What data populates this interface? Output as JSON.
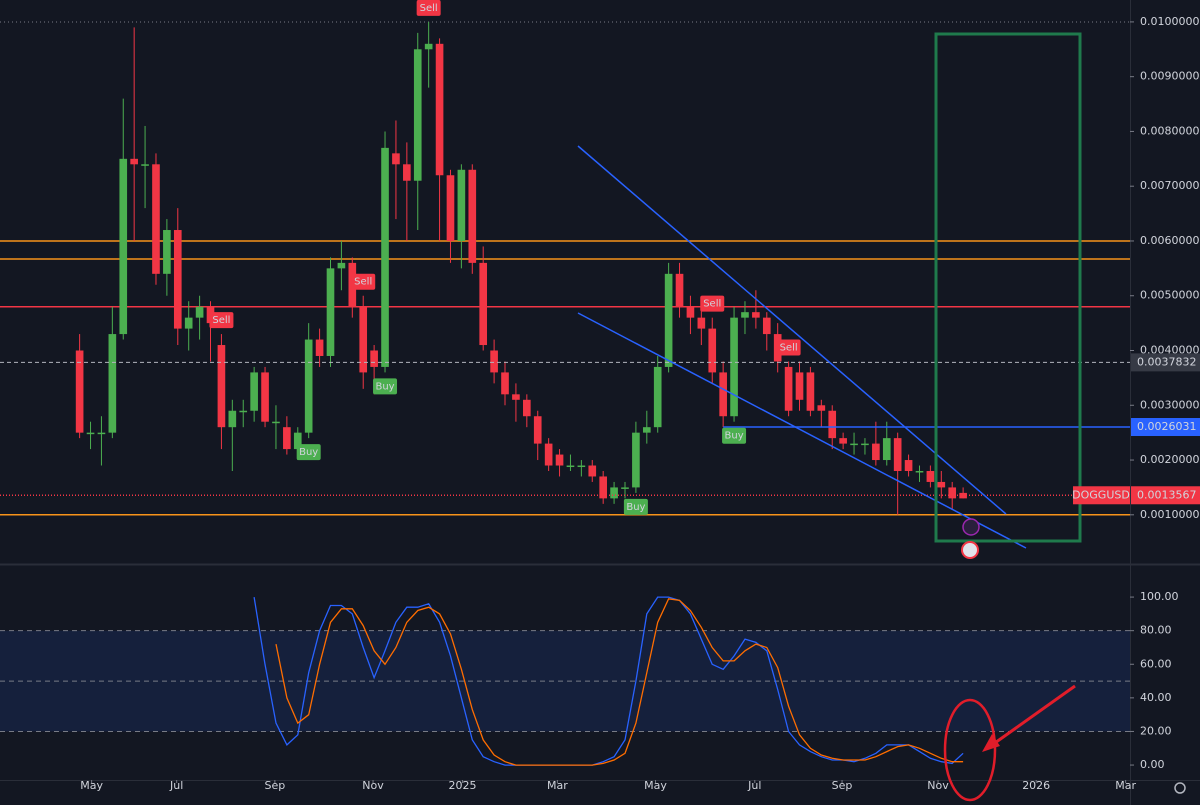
{
  "chart_data": [
    {
      "type": "candlestick",
      "x": [
        0,
        1,
        2,
        3,
        4,
        5,
        6,
        7,
        8,
        9,
        10,
        11,
        12,
        13,
        14,
        15,
        16,
        17,
        18,
        19,
        20,
        21,
        22,
        23,
        24,
        25,
        26,
        27,
        28,
        29,
        30,
        31,
        32,
        33,
        34,
        35,
        36,
        37,
        38,
        39,
        40,
        41,
        42,
        43,
        44,
        45,
        46,
        47,
        48,
        49,
        50,
        51,
        52,
        53,
        54,
        55,
        56,
        57,
        58,
        59,
        60,
        61,
        62,
        63,
        64,
        65,
        66,
        67,
        68,
        69,
        70,
        71,
        72,
        73,
        74,
        75,
        76,
        77,
        78,
        79,
        80,
        81
      ],
      "open": [
        0.004,
        0.0025,
        0.0025,
        0.0025,
        0.0043,
        0.0075,
        0.0074,
        0.0074,
        0.0054,
        0.0062,
        0.0044,
        0.0046,
        0.0048,
        0.0041,
        0.0026,
        0.0029,
        0.0029,
        0.0036,
        0.0027,
        0.0026,
        0.0022,
        0.0025,
        0.0042,
        0.0039,
        0.0055,
        0.0056,
        0.0048,
        0.004,
        0.0037,
        0.0076,
        0.0074,
        0.0071,
        0.0095,
        0.0096,
        0.0072,
        0.006,
        0.0073,
        0.0056,
        0.004,
        0.0036,
        0.0032,
        0.0031,
        0.0028,
        0.0023,
        0.0021,
        0.0019,
        0.0019,
        0.0019,
        0.0017,
        0.0013,
        0.0015,
        0.0015,
        0.0025,
        0.0026,
        0.0037,
        0.0054,
        0.0048,
        0.0046,
        0.0044,
        0.0036,
        0.0028,
        0.0046,
        0.0047,
        0.0046,
        0.0043,
        0.0037,
        0.0036,
        0.0036,
        0.003,
        0.0029,
        0.0024,
        0.0023,
        0.0023,
        0.0023,
        0.002,
        0.0024,
        0.002,
        0.0018,
        0.0018,
        0.0016,
        0.0015,
        0.0014
      ],
      "high": [
        0.0043,
        0.0027,
        0.0028,
        0.0048,
        0.0086,
        0.0099,
        0.0081,
        0.0076,
        0.0064,
        0.0066,
        0.0049,
        0.005,
        0.0049,
        0.0043,
        0.0031,
        0.0031,
        0.0037,
        0.0037,
        0.003,
        0.0028,
        0.0026,
        0.0045,
        0.0044,
        0.0057,
        0.006,
        0.0057,
        0.005,
        0.0041,
        0.008,
        0.0082,
        0.0078,
        0.0098,
        0.01,
        0.0097,
        0.0073,
        0.0074,
        0.0074,
        0.0059,
        0.0042,
        0.0038,
        0.0034,
        0.0032,
        0.0029,
        0.0024,
        0.0022,
        0.0021,
        0.002,
        0.002,
        0.0018,
        0.0016,
        0.0016,
        0.0027,
        0.0029,
        0.0039,
        0.0056,
        0.0056,
        0.005,
        0.0048,
        0.0046,
        0.0038,
        0.0048,
        0.0049,
        0.0051,
        0.0047,
        0.0045,
        0.0038,
        0.0038,
        0.0037,
        0.0031,
        0.003,
        0.0025,
        0.0025,
        0.0024,
        0.0027,
        0.0027,
        0.0025,
        0.0021,
        0.0019,
        0.0019,
        0.0018,
        0.0016,
        0.0015
      ],
      "low": [
        0.0024,
        0.0022,
        0.0019,
        0.0024,
        0.0042,
        0.006,
        0.0066,
        0.0052,
        0.005,
        0.0041,
        0.004,
        0.0042,
        0.0038,
        0.0022,
        0.0018,
        0.0026,
        0.0027,
        0.0026,
        0.0022,
        0.0021,
        0.002,
        0.0024,
        0.0037,
        0.0037,
        0.0051,
        0.0046,
        0.0033,
        0.0032,
        0.0036,
        0.0064,
        0.006,
        0.0062,
        0.0088,
        0.006,
        0.0056,
        0.0055,
        0.0054,
        0.004,
        0.0034,
        0.003,
        0.0027,
        0.0026,
        0.002,
        0.0018,
        0.0017,
        0.0018,
        0.0017,
        0.0016,
        0.0012,
        0.0012,
        0.0013,
        0.0014,
        0.0023,
        0.0025,
        0.0036,
        0.0046,
        0.0043,
        0.0041,
        0.0034,
        0.0026,
        0.0027,
        0.0043,
        0.0044,
        0.004,
        0.0036,
        0.0028,
        0.0029,
        0.0028,
        0.0026,
        0.0022,
        0.0022,
        0.0021,
        0.0021,
        0.0019,
        0.0019,
        0.001,
        0.0017,
        0.0016,
        0.0015,
        0.0013,
        0.0011,
        0.0013
      ],
      "close": [
        0.0025,
        0.0025,
        0.0025,
        0.0043,
        0.0075,
        0.0074,
        0.0074,
        0.0054,
        0.0062,
        0.0044,
        0.0046,
        0.0048,
        0.0045,
        0.0026,
        0.0029,
        0.0029,
        0.0036,
        0.0027,
        0.0027,
        0.0022,
        0.0025,
        0.0042,
        0.0039,
        0.0055,
        0.0056,
        0.0048,
        0.0036,
        0.0037,
        0.0077,
        0.0074,
        0.0071,
        0.0095,
        0.0096,
        0.0072,
        0.006,
        0.0073,
        0.0056,
        0.0041,
        0.0036,
        0.0032,
        0.0031,
        0.0028,
        0.0023,
        0.0019,
        0.0019,
        0.0019,
        0.0019,
        0.0017,
        0.0013,
        0.0015,
        0.0015,
        0.0025,
        0.0026,
        0.0037,
        0.0054,
        0.0048,
        0.0046,
        0.0044,
        0.0036,
        0.0028,
        0.0046,
        0.0047,
        0.0046,
        0.0043,
        0.0038,
        0.0029,
        0.0031,
        0.0029,
        0.0029,
        0.0024,
        0.0023,
        0.0023,
        0.0023,
        0.002,
        0.0024,
        0.0018,
        0.0018,
        0.0018,
        0.0016,
        0.0015,
        0.0013,
        0.0013
      ],
      "up_color": "#4caf50",
      "down_color": "#f23645",
      "xlim": [
        -7.3,
        96.3
      ],
      "xticks": [
        {
          "value": 1.1,
          "label": "May"
        },
        {
          "value": 8.9,
          "label": "Jul"
        },
        {
          "value": 17.9,
          "label": "Sep"
        },
        {
          "value": 26.9,
          "label": "Nov"
        },
        {
          "value": 35.1,
          "label": "2025"
        },
        {
          "value": 43.8,
          "label": "Mar"
        },
        {
          "value": 52.8,
          "label": "May"
        },
        {
          "value": 61.9,
          "label": "Jul"
        },
        {
          "value": 69.9,
          "label": "Sep"
        },
        {
          "value": 78.7,
          "label": "Nov"
        },
        {
          "value": 87.7,
          "label": "2026"
        },
        {
          "value": 95.9,
          "label": "Mar"
        }
      ],
      "ylim": [
        0.00012,
        0.0104
      ],
      "yticks": [
        {
          "value": 0.001,
          "label": "0.0010000"
        },
        {
          "value": 0.002,
          "label": "0.0020000"
        },
        {
          "value": 0.003,
          "label": "0.0030000"
        },
        {
          "value": 0.004,
          "label": "0.0040000"
        },
        {
          "value": 0.005,
          "label": "0.0050000"
        },
        {
          "value": 0.006,
          "label": "0.0060000"
        },
        {
          "value": 0.007,
          "label": "0.0070000"
        },
        {
          "value": 0.008,
          "label": "0.0080000"
        },
        {
          "value": 0.009,
          "label": "0.0090000"
        },
        {
          "value": 0.01,
          "label": "0.0100000"
        }
      ],
      "levels": [
        {
          "value": 0.006,
          "color": "#f7931a"
        },
        {
          "value": 0.00567,
          "color": "#f7931a"
        },
        {
          "value": 0.0048,
          "color": "#f23645"
        },
        {
          "value": 0.001,
          "color": "#f7931a"
        }
      ],
      "price_marks": [
        {
          "value": 0.0037832,
          "color": "#363a45"
        },
        {
          "value": 0.0026031,
          "color": "#2962ff"
        },
        {
          "value": 0.0013567,
          "color": "#f23645"
        }
      ],
      "symbol": "DOGGUSD",
      "signals": [
        {
          "label": "Sell",
          "at": 13
        },
        {
          "label": "Buy",
          "at": 21
        },
        {
          "label": "Sell",
          "at": 26
        },
        {
          "label": "Buy",
          "at": 28
        },
        {
          "label": "Sell",
          "at": 32
        },
        {
          "label": "Buy",
          "at": 51
        },
        {
          "label": "Sell",
          "at": 58
        },
        {
          "label": "Buy",
          "at": 60
        },
        {
          "label": "Sell",
          "at": 65
        }
      ]
    },
    {
      "type": "line",
      "series": [
        {
          "name": "%K",
          "color": "#2962ff",
          "values": [
            null,
            null,
            null,
            null,
            null,
            null,
            null,
            null,
            null,
            null,
            null,
            null,
            null,
            null,
            null,
            null,
            100,
            60,
            25,
            12,
            18,
            55,
            80,
            95,
            95,
            90,
            70,
            52,
            68,
            85,
            94,
            94,
            96,
            85,
            65,
            40,
            15,
            5,
            2,
            0,
            0,
            0,
            0,
            0,
            0,
            0,
            0,
            0,
            2,
            5,
            15,
            50,
            90,
            100,
            100,
            98,
            90,
            75,
            60,
            57,
            65,
            75,
            73,
            68,
            45,
            20,
            12,
            8,
            5,
            3,
            3,
            2,
            4,
            7,
            12,
            12,
            12,
            8,
            4,
            2,
            1,
            7
          ]
        },
        {
          "name": "%D",
          "color": "#ff6d00",
          "values": [
            null,
            null,
            null,
            null,
            null,
            null,
            null,
            null,
            null,
            null,
            null,
            null,
            null,
            null,
            null,
            null,
            null,
            null,
            72,
            40,
            25,
            30,
            60,
            85,
            93,
            93,
            83,
            68,
            60,
            70,
            85,
            92,
            94,
            90,
            78,
            57,
            33,
            15,
            6,
            2,
            0,
            0,
            0,
            0,
            0,
            0,
            0,
            0,
            1,
            3,
            7,
            25,
            55,
            85,
            99,
            98,
            92,
            82,
            70,
            62,
            62,
            68,
            72,
            70,
            58,
            35,
            18,
            10,
            6,
            4,
            3,
            3,
            3,
            5,
            8,
            11,
            12,
            10,
            7,
            4,
            2,
            2
          ]
        }
      ],
      "y2lim": [
        -8.9,
        118.5
      ],
      "y2ticks": [
        {
          "value": 0,
          "label": "0.00"
        },
        {
          "value": 20,
          "label": "20.00"
        },
        {
          "value": 40,
          "label": "40.00"
        },
        {
          "value": 60,
          "label": "60.00"
        },
        {
          "value": 80,
          "label": "80.00"
        },
        {
          "value": 100,
          "label": "100.00"
        }
      ],
      "levels": [
        80,
        50,
        20
      ],
      "band": [
        20,
        80
      ]
    }
  ]
}
